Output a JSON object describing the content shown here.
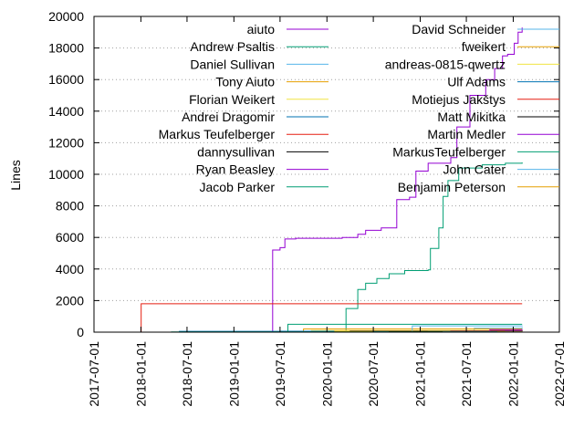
{
  "chart_data": {
    "type": "line",
    "ylabel": "Lines",
    "ylim": [
      0,
      20000
    ],
    "yticks": [
      0,
      2000,
      4000,
      6000,
      8000,
      10000,
      12000,
      14000,
      16000,
      18000,
      20000
    ],
    "xlim": [
      "2017-07-01",
      "2022-07-01"
    ],
    "xticks": [
      "2017-07-01",
      "2018-01-01",
      "2018-07-01",
      "2019-01-01",
      "2019-07-01",
      "2020-01-01",
      "2020-07-01",
      "2021-01-01",
      "2021-07-01",
      "2022-01-01",
      "2022-07-01"
    ],
    "grid": "horizontal dotted",
    "legend_placement": "top",
    "series": [
      {
        "name": "aiuto",
        "color": "#9400d3",
        "points": [
          [
            "2018-02-25",
            0
          ],
          [
            "2019-05-31",
            10
          ],
          [
            "2019-06-02",
            5200
          ],
          [
            "2019-07-01",
            5350
          ],
          [
            "2019-07-20",
            5900
          ],
          [
            "2019-09-01",
            5950
          ],
          [
            "2020-03-01",
            6000
          ],
          [
            "2020-05-01",
            6200
          ],
          [
            "2020-06-01",
            6450
          ],
          [
            "2020-08-01",
            6600
          ],
          [
            "2020-10-01",
            8400
          ],
          [
            "2020-11-20",
            8550
          ],
          [
            "2020-12-15",
            10200
          ],
          [
            "2021-02-01",
            10700
          ],
          [
            "2021-05-01",
            11050
          ],
          [
            "2021-05-25",
            13000
          ],
          [
            "2021-07-15",
            15000
          ],
          [
            "2021-09-15",
            16000
          ],
          [
            "2021-10-20",
            16700
          ],
          [
            "2021-11-20",
            17500
          ],
          [
            "2021-12-10",
            17600
          ],
          [
            "2022-01-05",
            18300
          ],
          [
            "2022-01-20",
            19000
          ],
          [
            "2022-02-05",
            19300
          ]
        ]
      },
      {
        "name": "Andrew Psaltis",
        "color": "#009e73",
        "points": [
          [
            "2019-09-15",
            0
          ],
          [
            "2020-03-15",
            0
          ],
          [
            "2020-03-16",
            1500
          ],
          [
            "2020-04-15",
            1500
          ],
          [
            "2020-05-01",
            2700
          ],
          [
            "2020-06-01",
            3100
          ],
          [
            "2020-07-15",
            3400
          ],
          [
            "2020-09-01",
            3700
          ],
          [
            "2020-11-01",
            3900
          ],
          [
            "2021-02-01",
            3950
          ],
          [
            "2021-02-10",
            5300
          ],
          [
            "2021-03-15",
            6600
          ],
          [
            "2021-04-01",
            8600
          ],
          [
            "2021-04-20",
            9600
          ],
          [
            "2021-06-01",
            10400
          ],
          [
            "2021-09-01",
            10600
          ],
          [
            "2021-12-01",
            10700
          ],
          [
            "2022-02-05",
            10750
          ]
        ]
      },
      {
        "name": "Daniel Sullivan",
        "color": "#56b4e9",
        "points": [
          [
            "2021-06-01",
            0
          ],
          [
            "2021-08-01",
            250
          ],
          [
            "2022-02-05",
            300
          ]
        ]
      },
      {
        "name": "Tony Aiuto",
        "color": "#e69f00",
        "points": [
          [
            "2019-09-10",
            0
          ],
          [
            "2019-10-01",
            200
          ],
          [
            "2020-03-01",
            200
          ],
          [
            "2022-02-05",
            200
          ]
        ]
      },
      {
        "name": "Florian Weikert",
        "color": "#f0e442",
        "points": [
          [
            "2019-10-01",
            0
          ],
          [
            "2019-11-01",
            100
          ],
          [
            "2022-02-05",
            120
          ]
        ]
      },
      {
        "name": "Andrei Dragomir",
        "color": "#0072b2",
        "points": [
          [
            "2018-05-01",
            0
          ],
          [
            "2018-06-01",
            50
          ],
          [
            "2019-07-01",
            60
          ],
          [
            "2022-02-05",
            60
          ]
        ]
      },
      {
        "name": "Markus Teufelberger",
        "color": "#e51e10",
        "points": [
          [
            "2018-01-01",
            0
          ],
          [
            "2018-01-02",
            1800
          ],
          [
            "2022-02-05",
            1800
          ]
        ]
      },
      {
        "name": "dannysullivan",
        "color": "#000000",
        "points": [
          [
            "2020-03-01",
            0
          ],
          [
            "2020-04-01",
            80
          ],
          [
            "2022-02-05",
            100
          ]
        ]
      },
      {
        "name": "Ryan Beasley",
        "color": "#9400d3",
        "points": [
          [
            "2021-09-01",
            0
          ],
          [
            "2021-10-01",
            150
          ],
          [
            "2022-02-05",
            180
          ]
        ]
      },
      {
        "name": "Jacob Parker",
        "color": "#009e73",
        "points": [
          [
            "2019-07-15",
            0
          ],
          [
            "2019-08-01",
            500
          ],
          [
            "2022-02-05",
            500
          ]
        ]
      },
      {
        "name": "David Schneider",
        "color": "#56b4e9",
        "points": [
          [
            "2020-11-01",
            0
          ],
          [
            "2020-12-01",
            400
          ],
          [
            "2022-02-05",
            420
          ]
        ]
      },
      {
        "name": "fweikert",
        "color": "#e69f00",
        "points": [
          [
            "2020-01-01",
            0
          ],
          [
            "2020-02-01",
            60
          ],
          [
            "2022-02-05",
            60
          ]
        ]
      },
      {
        "name": "andreas-0815-qwertz",
        "color": "#f0e442",
        "points": [
          [
            "2021-01-01",
            0
          ],
          [
            "2021-02-01",
            40
          ],
          [
            "2022-02-05",
            40
          ]
        ]
      },
      {
        "name": "Ulf Adams",
        "color": "#0072b2",
        "points": [
          [
            "2020-06-01",
            0
          ],
          [
            "2020-07-01",
            30
          ],
          [
            "2022-02-05",
            30
          ]
        ]
      },
      {
        "name": "Motiejus Jakštys",
        "color": "#e51e10",
        "points": [
          [
            "2021-04-01",
            0
          ],
          [
            "2021-05-01",
            50
          ],
          [
            "2022-02-05",
            50
          ]
        ]
      },
      {
        "name": "Matt Mikitka",
        "color": "#000000",
        "points": [
          [
            "2020-08-01",
            0
          ],
          [
            "2020-09-01",
            30
          ],
          [
            "2022-02-05",
            30
          ]
        ]
      },
      {
        "name": "Martin Medler",
        "color": "#9400d3",
        "points": [
          [
            "2021-11-01",
            0
          ],
          [
            "2021-12-01",
            40
          ],
          [
            "2022-02-05",
            40
          ]
        ]
      },
      {
        "name": "MarkusTeufelberger",
        "color": "#009e73",
        "points": [
          [
            "2018-04-01",
            0
          ],
          [
            "2018-05-01",
            20
          ],
          [
            "2022-02-05",
            20
          ]
        ]
      },
      {
        "name": "John Cater",
        "color": "#56b4e9",
        "points": [
          [
            "2021-03-01",
            0
          ],
          [
            "2021-04-01",
            20
          ],
          [
            "2022-02-05",
            20
          ]
        ]
      },
      {
        "name": "Benjamin Peterson",
        "color": "#e69f00",
        "points": [
          [
            "2021-10-01",
            0
          ],
          [
            "2021-11-01",
            20
          ],
          [
            "2022-02-05",
            20
          ]
        ]
      }
    ]
  }
}
